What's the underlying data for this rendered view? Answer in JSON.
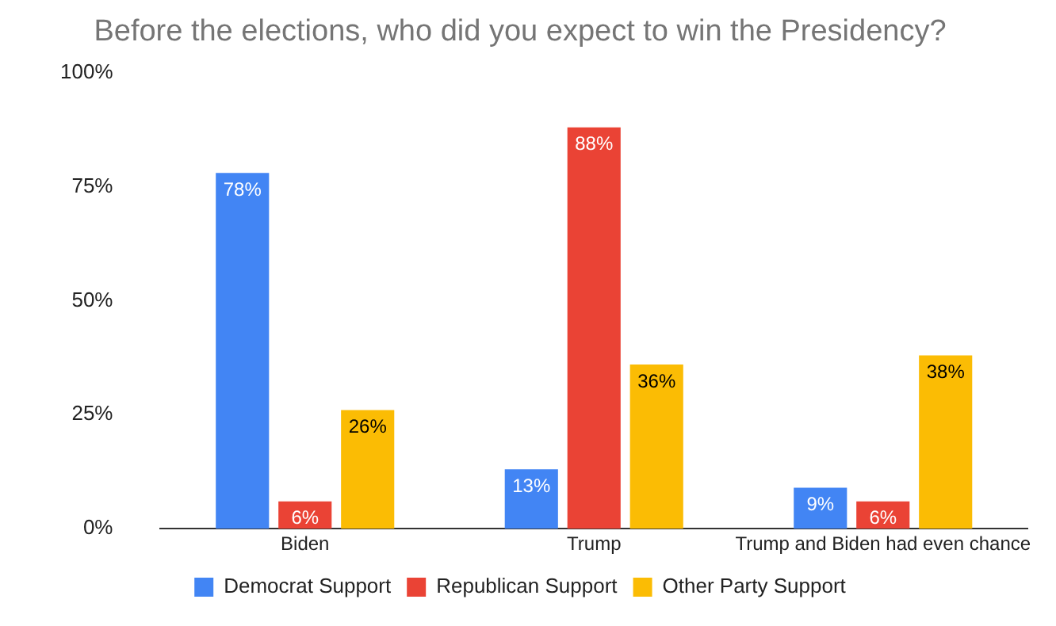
{
  "chart_data": {
    "type": "bar",
    "title": "Before the elections, who did you expect to win the Presidency?",
    "categories": [
      "Biden",
      "Trump",
      "Trump and Biden had even chance"
    ],
    "series": [
      {
        "name": "Democrat Support",
        "color": "#4285f4",
        "values": [
          78,
          13,
          9
        ],
        "value_labels": [
          "78%",
          "13%",
          "9%"
        ]
      },
      {
        "name": "Republican Support",
        "color": "#ea4335",
        "values": [
          6,
          88,
          6
        ],
        "value_labels": [
          "6%",
          "88%",
          "6%"
        ]
      },
      {
        "name": "Other Party Support",
        "color": "#fbbc04",
        "values": [
          26,
          36,
          38
        ],
        "value_labels": [
          "26%",
          "36%",
          "38%"
        ]
      }
    ],
    "ylim": [
      0,
      100
    ],
    "yticks": [
      {
        "value": 0,
        "label": "0%"
      },
      {
        "value": 25,
        "label": "25%"
      },
      {
        "value": 50,
        "label": "50%"
      },
      {
        "value": 75,
        "label": "75%"
      },
      {
        "value": 100,
        "label": "100%"
      }
    ],
    "grid": false,
    "legend": "bottom"
  }
}
